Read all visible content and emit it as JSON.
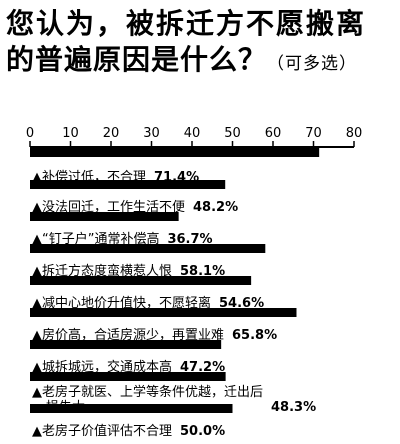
{
  "header": {
    "title_line1": "您认为，被拆迁方不愿搬离",
    "title_line2": "的普遍原因是什么？",
    "title_note": "（可多选）"
  },
  "chart_data": {
    "type": "bar",
    "orientation": "horizontal",
    "title": "您认为，被拆迁方不愿搬离的普遍原因是什么？（可多选）",
    "xlim": [
      0,
      80
    ],
    "xticks": [
      0,
      10,
      20,
      30,
      40,
      50,
      60,
      70,
      80
    ],
    "categories": [
      "补偿过低，不合理",
      "没法回迁，工作生活不便",
      "“钉子户”通常补偿高",
      "拆迁方态度蛮横惹人恨",
      "减中心地价升值快，不愿轻离",
      "房价高，合适房源少，再置业难",
      "城拆城远，交通成本高",
      "老房子就医、上学等条件优越，迁出后损失大",
      "老房子价值评估不合理"
    ],
    "label_lines": [
      [
        "补偿过低，不合理"
      ],
      [
        "没法回迁，工作生活不便"
      ],
      [
        "“钉子户”通常补偿高"
      ],
      [
        "拆迁方态度蛮横惹人恨"
      ],
      [
        "减中心地价升值快，不愿轻离"
      ],
      [
        "房价高，合适房源少，再置业难"
      ],
      [
        "城拆城远，交通成本高"
      ],
      [
        "老房子就医、上学等条件优越，迁出后",
        "损失大"
      ],
      [
        "老房子价值评估不合理"
      ]
    ],
    "values": [
      71.4,
      48.2,
      36.7,
      58.1,
      54.6,
      65.8,
      47.2,
      48.3,
      50.0
    ],
    "value_labels": [
      "71.4%",
      "48.2%",
      "36.7%",
      "58.1%",
      "54.6%",
      "65.8%",
      "47.2%",
      "48.3%",
      "50.0%"
    ],
    "marker": "▲",
    "grid": false,
    "bar_color": "#000000",
    "text_color": "#000000"
  }
}
